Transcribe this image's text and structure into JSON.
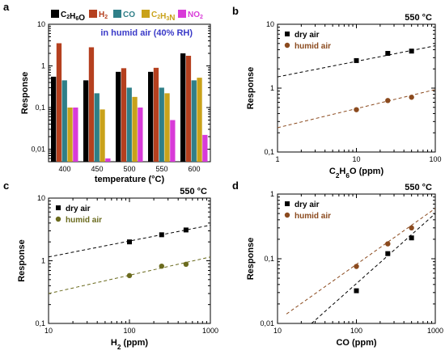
{
  "chart_data": [
    {
      "panel": "a",
      "type": "bar",
      "categories": [
        "400",
        "450",
        "500",
        "550",
        "600"
      ],
      "xlabel": "temperature (°C)",
      "ylabel": "Response",
      "yscale": "log",
      "ylim": [
        0.005,
        10
      ],
      "yticks": [
        "0,01",
        "0,1",
        "1",
        "10"
      ],
      "annotation": "in humid air (40% RH)",
      "legend_position": "top",
      "series": [
        {
          "name": "C2H6O",
          "color": "#000000",
          "values": [
            0.55,
            0.45,
            0.72,
            0.72,
            2.0
          ]
        },
        {
          "name": "H2",
          "color": "#b5401f",
          "values": [
            3.5,
            2.8,
            0.88,
            0.9,
            1.75
          ]
        },
        {
          "name": "CO",
          "color": "#2f7f88",
          "values": [
            0.45,
            0.22,
            0.3,
            0.3,
            0.45
          ]
        },
        {
          "name": "C2H3N",
          "color": "#c9a21a",
          "values": [
            0.1,
            0.09,
            0.18,
            0.22,
            0.52
          ]
        },
        {
          "name": "NO2",
          "color": "#d83ad8",
          "values": [
            0.1,
            0.006,
            0.1,
            0.05,
            0.022
          ]
        }
      ],
      "legend_labels": [
        {
          "main": "C",
          "sub": "2",
          "main2": "H",
          "sub2": "6",
          "main3": "O"
        },
        {
          "main": "H",
          "sub": "2"
        },
        {
          "main": "CO"
        },
        {
          "main": "C",
          "sub": "2",
          "main2": "H",
          "sub2": "3",
          "main3": "N"
        },
        {
          "main": "NO",
          "sub": "2"
        }
      ]
    },
    {
      "panel": "b",
      "type": "scatter",
      "title": "550 °C",
      "xlabel": "C2H6O (ppm)",
      "ylabel": "Response",
      "xscale": "log",
      "yscale": "log",
      "xlim": [
        1,
        100
      ],
      "ylim": [
        0.1,
        10
      ],
      "xticks": [
        "1",
        "10",
        "100"
      ],
      "yticks": [
        "0,1",
        "1",
        "10"
      ],
      "legend_position": "top-left",
      "series": [
        {
          "name": "dry air",
          "color": "#000000",
          "marker": "square",
          "x": [
            10,
            25,
            50
          ],
          "y": [
            2.7,
            3.5,
            3.8
          ],
          "fit": {
            "x": [
              1,
              100
            ],
            "y": [
              1.5,
              4.6
            ]
          }
        },
        {
          "name": "humid air",
          "color": "#8b4a1e",
          "marker": "circle",
          "x": [
            10,
            25,
            50
          ],
          "y": [
            0.46,
            0.64,
            0.72
          ],
          "fit": {
            "x": [
              1,
              100
            ],
            "y": [
              0.24,
              0.95
            ]
          }
        }
      ]
    },
    {
      "panel": "c",
      "type": "scatter",
      "title": "550 °C",
      "xlabel": "H2 (ppm)",
      "ylabel": "Response",
      "xscale": "log",
      "yscale": "log",
      "xlim": [
        10,
        1000
      ],
      "ylim": [
        0.1,
        10
      ],
      "xticks": [
        "10",
        "100",
        "1000"
      ],
      "yticks": [
        "0,1",
        "1",
        "10"
      ],
      "legend_position": "top-left",
      "series": [
        {
          "name": "dry air",
          "color": "#000000",
          "marker": "square",
          "x": [
            100,
            250,
            500
          ],
          "y": [
            2.0,
            2.6,
            3.1
          ],
          "fit": {
            "x": [
              10,
              1000
            ],
            "y": [
              1.15,
              3.7
            ]
          }
        },
        {
          "name": "humid air",
          "color": "#6b6b1e",
          "marker": "circle",
          "x": [
            100,
            250,
            500
          ],
          "y": [
            0.58,
            0.82,
            0.88
          ],
          "fit": {
            "x": [
              10,
              1000
            ],
            "y": [
              0.3,
              1.15
            ]
          }
        }
      ]
    },
    {
      "panel": "d",
      "type": "scatter",
      "title": "550 °C",
      "xlabel": "CO (ppm)",
      "ylabel": "Response",
      "xscale": "log",
      "yscale": "log",
      "xlim": [
        10,
        1000
      ],
      "ylim": [
        0.01,
        1
      ],
      "xticks": [
        "10",
        "100",
        "1000"
      ],
      "yticks": [
        "0,01",
        "0,1",
        "1"
      ],
      "legend_position": "top-left",
      "series": [
        {
          "name": "dry air",
          "color": "#000000",
          "marker": "square",
          "x": [
            100,
            250,
            500
          ],
          "y": [
            0.032,
            0.12,
            0.21
          ],
          "fit": {
            "x": [
              27,
              1000
            ],
            "y": [
              0.01,
              0.5
            ]
          }
        },
        {
          "name": "humid air",
          "color": "#8b4a1e",
          "marker": "circle",
          "x": [
            100,
            250,
            500
          ],
          "y": [
            0.076,
            0.17,
            0.3
          ],
          "fit": {
            "x": [
              13,
              1000
            ],
            "y": [
              0.014,
              0.6
            ]
          }
        }
      ]
    }
  ]
}
